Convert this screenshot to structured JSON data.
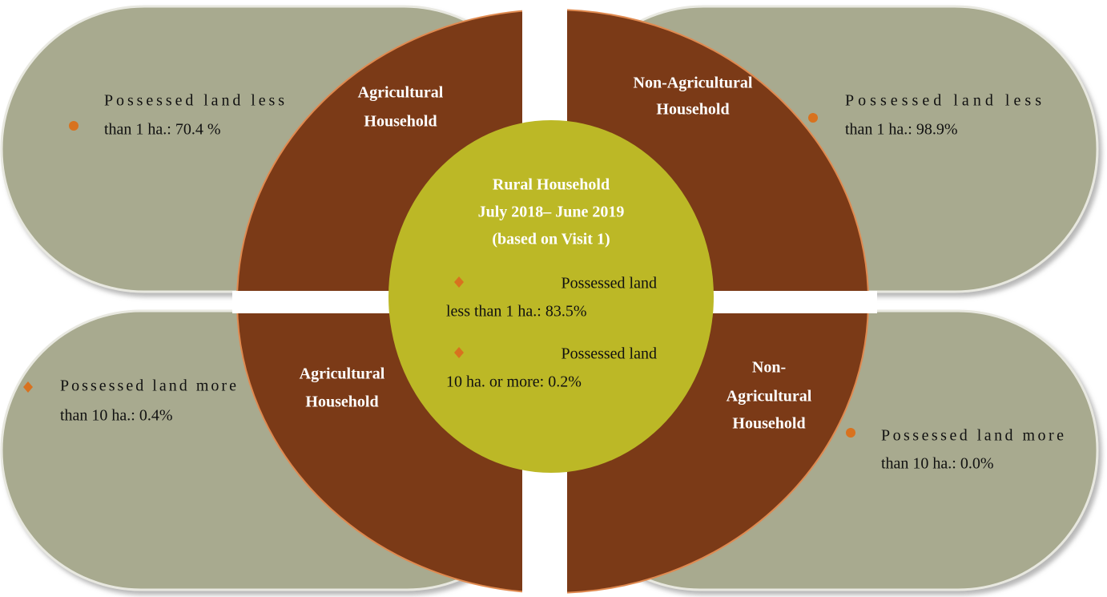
{
  "center": {
    "title_lines": [
      "Rural Household",
      "July 2018– June 2019",
      "(based on Visit 1)"
    ],
    "bullets": [
      [
        "Possessed land",
        "less than  1 ha.: 83.5%"
      ],
      [
        "Possessed land",
        "10 ha. or more: 0.2%"
      ]
    ]
  },
  "quadrants": [
    {
      "label_lines": [
        "Agricultural",
        "Household"
      ],
      "bullet_lines": [
        "Possessed land less",
        "than  1 ha.: 70.4 %"
      ]
    },
    {
      "label_lines": [
        "Non-Agricultural",
        "Household"
      ],
      "bullet_lines": [
        "Possessed land less",
        "than 1 ha.: 98.9%"
      ]
    },
    {
      "label_lines": [
        "Agricultural",
        "Household"
      ],
      "bullet_lines": [
        "Possessed land more",
        "than 10 ha.: 0.4%"
      ]
    },
    {
      "label_lines": [
        "Non-",
        "Agricultural",
        "Household"
      ],
      "bullet_lines": [
        "Possessed land more",
        "than 10 ha.: 0.0%"
      ]
    }
  ]
}
